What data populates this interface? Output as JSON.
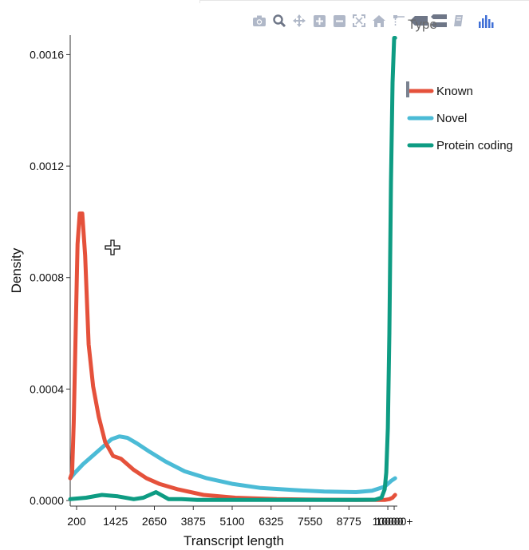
{
  "modebar": {
    "buttons": [
      {
        "name": "camera-icon"
      },
      {
        "name": "zoom-icon"
      },
      {
        "name": "pan-icon"
      },
      {
        "name": "zoom-in-icon"
      },
      {
        "name": "zoom-out-icon"
      },
      {
        "name": "autoscale-icon"
      },
      {
        "name": "home-icon"
      },
      {
        "name": "spike-lines-icon"
      },
      {
        "name": "hover-closest-icon"
      },
      {
        "name": "hover-compare-icon"
      },
      {
        "name": "edit-in-chart-studio-icon"
      },
      {
        "name": "plotly-logo-icon"
      }
    ]
  },
  "chart_data": {
    "type": "line",
    "xlabel": "Transcript length",
    "ylabel": "Density",
    "x_tick_labels": [
      "200",
      "1425",
      "2650",
      "3875",
      "5100",
      "6325",
      "7550",
      "8775",
      "10000",
      "10000+"
    ],
    "x_tick_values": [
      200,
      1425,
      2650,
      3875,
      5100,
      6325,
      7550,
      8775,
      10000,
      10200
    ],
    "xlim": [
      0,
      10300
    ],
    "ylim": [
      -2e-05,
      0.00167
    ],
    "y_tick_values": [
      0,
      0.0004,
      0.0008,
      0.0012,
      0.0016
    ],
    "y_tick_labels": [
      "0.0000",
      "0.0004",
      "0.0008",
      "0.0012",
      "0.0016"
    ],
    "legend": {
      "title": "Type",
      "position": "right"
    },
    "series": [
      {
        "name": "Known",
        "color": "#e5513b",
        "x": [
          0,
          60,
          110,
          170,
          230,
          300,
          380,
          470,
          580,
          720,
          900,
          1100,
          1350,
          1600,
          2000,
          2400,
          2800,
          3400,
          4200,
          5200,
          6500,
          8000,
          9200,
          9900,
          10050,
          10150,
          10230
        ],
        "y": [
          8e-05,
          0.0001,
          0.00028,
          0.0006,
          0.00092,
          0.00103,
          0.00103,
          0.00088,
          0.00056,
          0.00041,
          0.0003,
          0.00021,
          0.00016,
          0.00015,
          0.00011,
          8e-05,
          6e-05,
          4e-05,
          2e-05,
          1e-05,
          5e-06,
          3e-06,
          2e-06,
          2e-06,
          5e-06,
          1e-05,
          2e-05
        ]
      },
      {
        "name": "Novel",
        "color": "#4bbbd6",
        "x": [
          0,
          150,
          400,
          700,
          1000,
          1300,
          1550,
          1800,
          2100,
          2500,
          3000,
          3600,
          4300,
          5100,
          6000,
          7000,
          8000,
          9000,
          9500,
          9900,
          10100,
          10230
        ],
        "y": [
          8e-05,
          0.0001,
          0.00013,
          0.00016,
          0.00019,
          0.00022,
          0.00023,
          0.000225,
          0.000205,
          0.000175,
          0.00014,
          0.000105,
          8e-05,
          6e-05,
          4.5e-05,
          3.8e-05,
          3.2e-05,
          3e-05,
          3.5e-05,
          5e-05,
          7e-05,
          8e-05
        ]
      },
      {
        "name": "Protein coding",
        "color": "#0e9c83",
        "x": [
          0,
          500,
          1000,
          1500,
          2000,
          2300,
          2700,
          3100,
          3500,
          4000,
          5000,
          7000,
          9000,
          9600,
          9800,
          9900,
          9950,
          10000,
          10050,
          10100,
          10150,
          10200,
          10230
        ],
        "y": [
          5e-06,
          1e-05,
          2e-05,
          1.5e-05,
          5e-06,
          1e-05,
          3e-05,
          5e-06,
          5e-06,
          2e-06,
          2e-06,
          2e-06,
          2e-06,
          3e-06,
          1e-05,
          4e-05,
          0.0001,
          0.00026,
          0.0006,
          0.00114,
          0.0015,
          0.00166,
          0.00166
        ]
      }
    ]
  }
}
